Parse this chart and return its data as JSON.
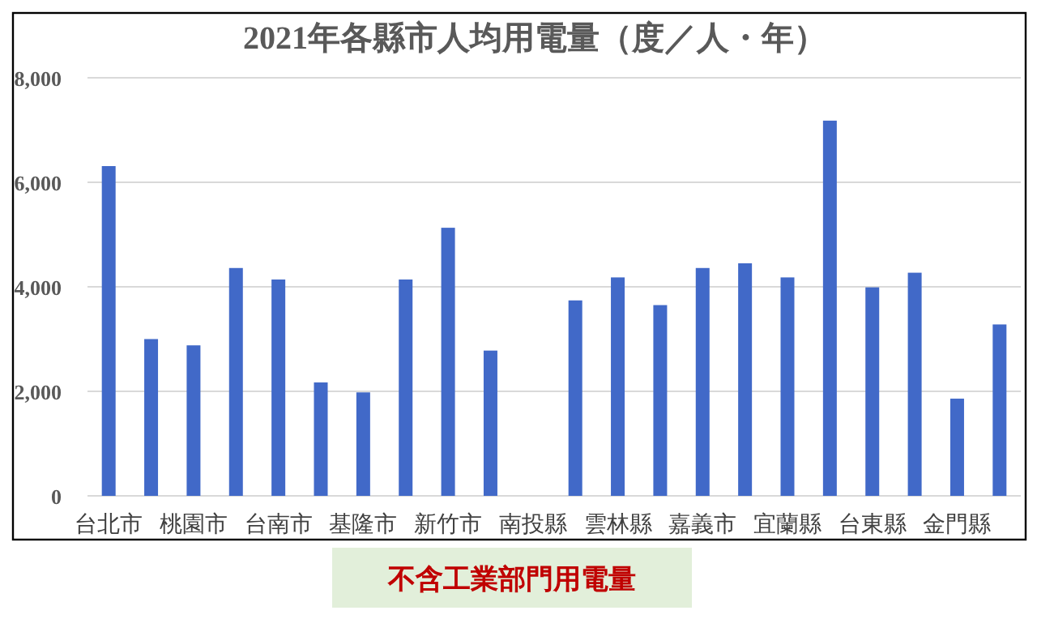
{
  "chart_data": {
    "type": "bar",
    "title": "2021年各縣市人均用電量（度／人・年）",
    "categories": [
      "台北市",
      null,
      "桃園市",
      null,
      "台南市",
      null,
      "基隆市",
      null,
      "新竹市",
      null,
      "南投縣",
      null,
      "雲林縣",
      null,
      "嘉義市",
      null,
      "宜蘭縣",
      null,
      "台東縣",
      null,
      "金門縣",
      null
    ],
    "values": [
      6310,
      3000,
      2880,
      4360,
      4140,
      2170,
      1980,
      4140,
      5130,
      2780,
      null,
      3740,
      4180,
      3650,
      4360,
      4450,
      4180,
      7180,
      3990,
      4270,
      1860,
      3280
    ],
    "color": "#4169c8",
    "ylim": [
      0,
      8000
    ],
    "yticks": [
      {
        "value": 0,
        "label": "0"
      },
      {
        "value": 2000,
        "label": "2,000"
      },
      {
        "value": 4000,
        "label": "4,000"
      },
      {
        "value": 6000,
        "label": "6,000"
      },
      {
        "value": 8000,
        "label": "8,000"
      }
    ],
    "grid": "y",
    "annotations": [
      "不含工業部門用電量"
    ]
  }
}
